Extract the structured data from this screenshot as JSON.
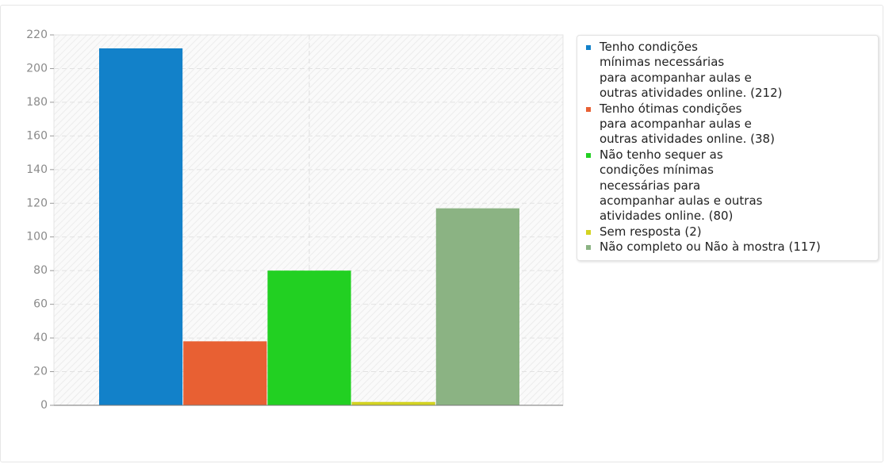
{
  "chart_data": {
    "type": "bar",
    "series": [
      {
        "name": "Tenho condições\nmínimas necessárias\npara acompanhar aulas e\noutras atividades online. (212)",
        "color": "#1281c9",
        "values": [
          212
        ]
      },
      {
        "name": "Tenho ótimas condições\npara acompanhar aulas e\noutras atividades online. (38)",
        "color": "#e86033",
        "values": [
          38
        ]
      },
      {
        "name": "Não tenho sequer as\ncondições mínimas\nnecessárias para\nacompanhar aulas e outras\natividades online. (80)",
        "color": "#22d022",
        "values": [
          80
        ]
      },
      {
        "name": "Sem resposta (2)",
        "color": "#d3d321",
        "values": [
          2
        ]
      },
      {
        "name": "Não completo ou Não à mostra (117)",
        "color": "#8bb383",
        "values": [
          117
        ]
      }
    ],
    "ylim": [
      0,
      220
    ],
    "yticks": [
      0,
      20,
      40,
      60,
      80,
      100,
      120,
      140,
      160,
      180,
      200,
      220
    ],
    "grid": true
  }
}
